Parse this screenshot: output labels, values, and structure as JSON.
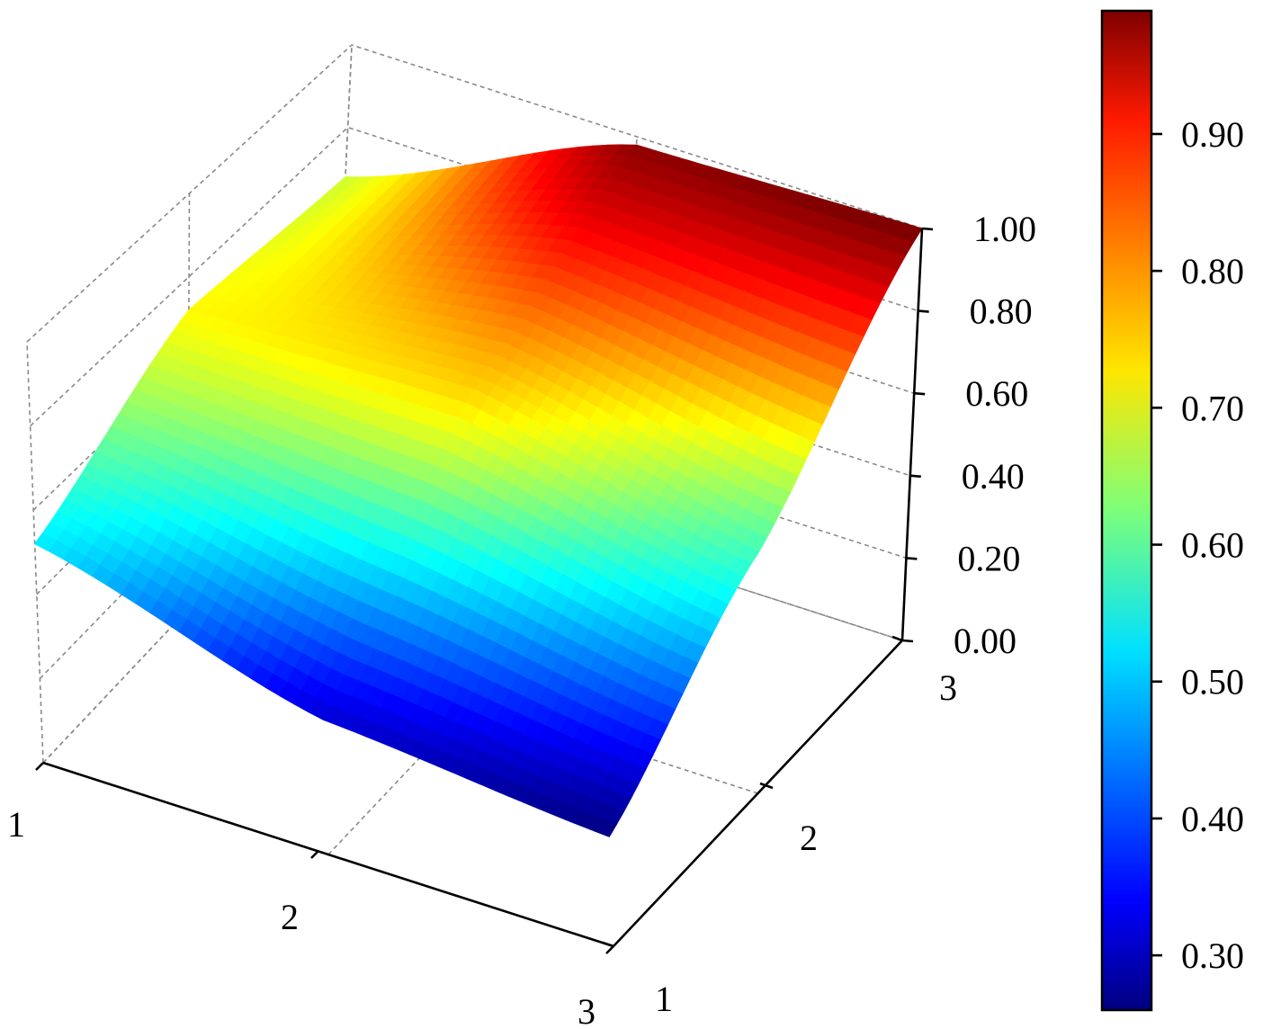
{
  "chart_data": {
    "type": "surface3d",
    "title": "",
    "xlabel": "",
    "ylabel": "",
    "zlabel": "",
    "x": [
      1,
      2,
      3
    ],
    "y": [
      1,
      2,
      3
    ],
    "x_tick_labels": [
      "1",
      "2",
      "3"
    ],
    "y_tick_labels": [
      "1",
      "2",
      "3"
    ],
    "z_tick_labels": [
      "0.00",
      "0.20",
      "0.40",
      "0.60",
      "0.80",
      "1.00"
    ],
    "zlim": [
      0,
      1
    ],
    "z": [
      [
        0.52,
        0.72,
        0.68
      ],
      [
        0.32,
        0.75,
        0.98
      ],
      [
        0.26,
        0.58,
        1.0
      ]
    ],
    "grid": true,
    "colormap": "jet",
    "colorbar": {
      "range": [
        0.26,
        0.99
      ],
      "tick_labels": [
        "0.30",
        "0.40",
        "0.50",
        "0.60",
        "0.70",
        "0.80",
        "0.90"
      ],
      "ticks": [
        0.3,
        0.4,
        0.5,
        0.6,
        0.7,
        0.8,
        0.9
      ]
    }
  }
}
